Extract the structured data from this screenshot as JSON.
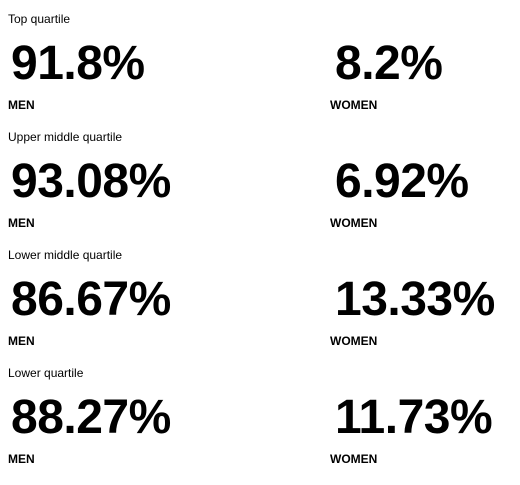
{
  "quartiles": [
    {
      "title": "Top quartile",
      "men_pct": "91.8%",
      "women_pct": "8.2%",
      "men_label": "MEN",
      "women_label": "WOMEN"
    },
    {
      "title": "Upper middle quartile",
      "men_pct": "93.08%",
      "women_pct": "6.92%",
      "men_label": "MEN",
      "women_label": "WOMEN"
    },
    {
      "title": "Lower middle quartile",
      "men_pct": "86.67%",
      "women_pct": "13.33%",
      "men_label": "MEN",
      "women_label": "WOMEN"
    },
    {
      "title": "Lower quartile",
      "men_pct": "88.27%",
      "women_pct": "11.73%",
      "men_label": "MEN",
      "women_label": "WOMEN"
    }
  ]
}
